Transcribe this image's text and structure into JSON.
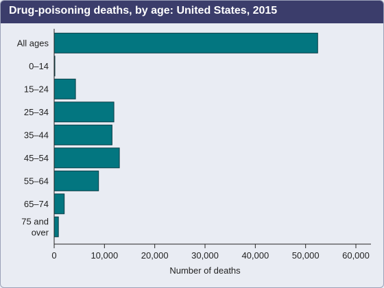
{
  "title": "Drug-poisoning deaths, by age: United States, 2015",
  "colors": {
    "bar": "#037680",
    "bar_edge": "#0a3e46",
    "title_bg": "#3b3d6b",
    "background": "#e9ecf3",
    "axis": "#222222"
  },
  "chart_data": {
    "type": "bar",
    "orientation": "horizontal",
    "title": "Drug-poisoning deaths, by age: United States, 2015",
    "xlabel": "Number of deaths",
    "ylabel": "",
    "categories": [
      "All ages",
      "0–14",
      "15–24",
      "25–34",
      "35–44",
      "45–54",
      "55–64",
      "65–74",
      "75 and over"
    ],
    "category_lines": [
      [
        "All ages"
      ],
      [
        "0–14"
      ],
      [
        "15–24"
      ],
      [
        "25–34"
      ],
      [
        "35–44"
      ],
      [
        "45–54"
      ],
      [
        "55–64"
      ],
      [
        "65–74"
      ],
      [
        "75 and",
        "over"
      ]
    ],
    "values": [
      52404,
      140,
      4235,
      11880,
      11505,
      12974,
      8819,
      2005,
      847
    ],
    "xlim": [
      0,
      60000
    ],
    "xticks": [
      0,
      10000,
      20000,
      30000,
      40000,
      50000,
      60000
    ],
    "xtick_labels": [
      "0",
      "10,000",
      "20,000",
      "30,000",
      "40,000",
      "50,000",
      "60,000"
    ],
    "grid": false,
    "legend": "none"
  }
}
